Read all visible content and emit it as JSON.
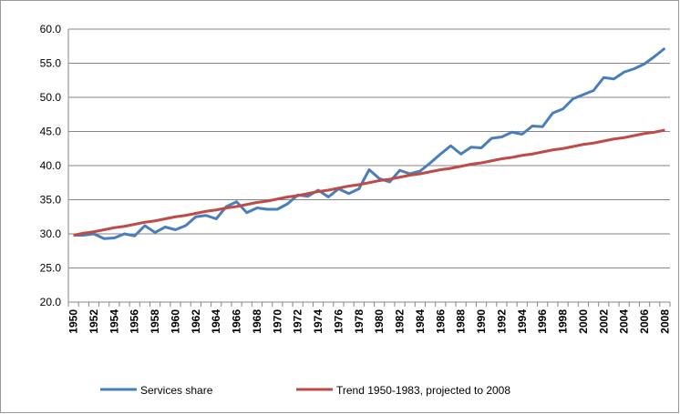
{
  "chart_data": {
    "type": "line",
    "categories": [
      "1950",
      null,
      "1952",
      null,
      "1954",
      null,
      "1956",
      null,
      "1958",
      null,
      "1960",
      null,
      "1962",
      null,
      "1964",
      null,
      "1966",
      null,
      "1968",
      null,
      "1970",
      null,
      "1972",
      null,
      "1974",
      null,
      "1976",
      null,
      "1978",
      null,
      "1980",
      null,
      "1982",
      null,
      "1984",
      null,
      "1986",
      null,
      "1988",
      null,
      "1990",
      null,
      "1992",
      null,
      "1994",
      null,
      "1996",
      null,
      "1998",
      null,
      "2000",
      null,
      "2002",
      null,
      "2004",
      null,
      "2006",
      null,
      "2008"
    ],
    "series": [
      {
        "name": "Services share",
        "color": "#4a7ebb",
        "values": [
          29.8,
          29.8,
          30.0,
          29.3,
          29.4,
          30.0,
          29.7,
          31.2,
          30.2,
          31.0,
          30.6,
          31.2,
          32.5,
          32.7,
          32.2,
          34.0,
          34.7,
          33.1,
          33.8,
          33.6,
          33.6,
          34.4,
          35.7,
          35.5,
          36.4,
          35.4,
          36.6,
          35.9,
          36.6,
          39.4,
          38.1,
          37.6,
          39.3,
          38.8,
          39.2,
          40.4,
          41.7,
          42.9,
          41.7,
          42.7,
          42.6,
          44.0,
          44.2,
          44.9,
          44.6,
          45.8,
          45.7,
          47.7,
          48.3,
          49.8,
          50.4,
          51.0,
          52.9,
          52.7,
          53.7,
          54.2,
          54.9,
          56.0,
          57.2
        ]
      },
      {
        "name": "Trend 1950-1983, projected to 2008",
        "color": "#be4b48",
        "values": [
          29.8,
          30.1,
          30.3,
          30.6,
          30.9,
          31.1,
          31.4,
          31.7,
          31.9,
          32.2,
          32.5,
          32.7,
          33.0,
          33.3,
          33.5,
          33.8,
          34.0,
          34.3,
          34.6,
          34.8,
          35.1,
          35.4,
          35.6,
          35.9,
          36.2,
          36.4,
          36.7,
          37.0,
          37.2,
          37.5,
          37.8,
          38.0,
          38.3,
          38.6,
          38.8,
          39.1,
          39.4,
          39.6,
          39.9,
          40.2,
          40.4,
          40.7,
          41.0,
          41.2,
          41.5,
          41.7,
          42.0,
          42.3,
          42.5,
          42.8,
          43.1,
          43.3,
          43.6,
          43.9,
          44.1,
          44.4,
          44.7,
          44.9,
          45.2
        ]
      }
    ],
    "ylim": [
      20,
      60
    ],
    "yticks": [
      {
        "value": 20,
        "label": "20.0"
      },
      {
        "value": 25,
        "label": "25.0"
      },
      {
        "value": 30,
        "label": "30.0"
      },
      {
        "value": 35,
        "label": "35.0"
      },
      {
        "value": 40,
        "label": "40.0"
      },
      {
        "value": 45,
        "label": "45.0"
      },
      {
        "value": 50,
        "label": "50.0"
      },
      {
        "value": 55,
        "label": "55.0"
      },
      {
        "value": 60,
        "label": "60.0"
      }
    ],
    "grid": true,
    "legend": "bottom"
  }
}
